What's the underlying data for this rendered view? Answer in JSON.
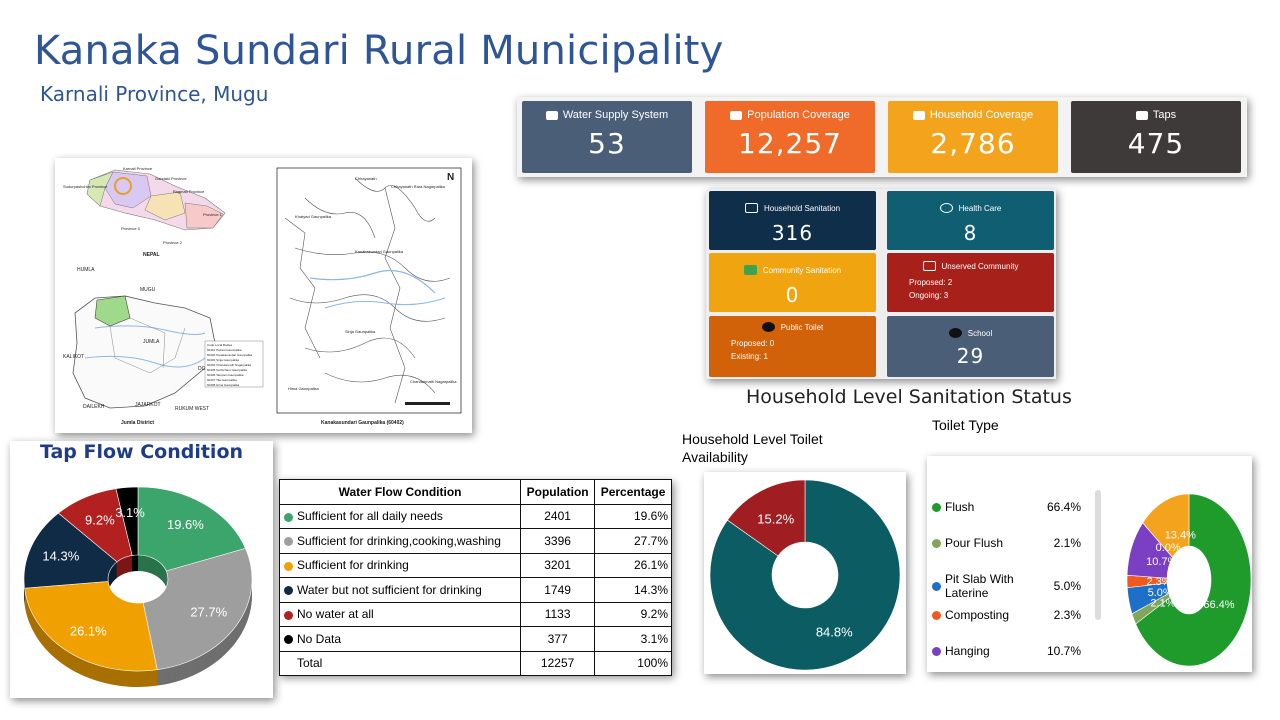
{
  "header": {
    "title": "Kanaka Sundari Rural Municipality",
    "subtitle": "Karnali Province, Mugu"
  },
  "kpis": [
    {
      "label": "Water Supply System",
      "value": "53",
      "color": "#4B5E77",
      "icon": "edit-icon"
    },
    {
      "label": "Population Coverage",
      "value": "12,257",
      "color": "#F06A2A",
      "icon": "users-icon"
    },
    {
      "label": "Household Coverage",
      "value": "2,786",
      "color": "#F4A31C",
      "icon": "home-icon"
    },
    {
      "label": "Taps",
      "value": "475",
      "color": "#3F3A3A",
      "icon": "tap-icon"
    }
  ],
  "tiles": {
    "household_sanitation": {
      "label": "Household Sanitation",
      "value": "316",
      "color": "#0E2E4A"
    },
    "health_care": {
      "label": "Health Care",
      "value": "8",
      "color": "#0F5E72"
    },
    "community_sanitation": {
      "label": "Community Sanitation",
      "value": "0",
      "color": "#F0A510"
    },
    "unserved_community": {
      "label": "Unserved Community",
      "proposed": "Proposed: 2",
      "ongoing": "Ongoing: 3",
      "color": "#A8201A"
    },
    "public_toilet": {
      "label": "Public Toilet",
      "proposed": "Proposed: 0",
      "existing": "Existing: 1",
      "color": "#D2620A"
    },
    "school": {
      "label": "School",
      "value": "29",
      "color": "#4B5E77"
    }
  },
  "map": {
    "labels": {
      "karnali": "Karnali Province",
      "gandaki": "Gandaki Province",
      "bagmati": "Bagmati Province",
      "sudur": "Sudurpashchim Province",
      "p1": "Province 1",
      "p2": "Province 2",
      "p5": "Province 5",
      "nepal": "NEPAL",
      "humla": "HUMLA",
      "mugu": "MUGU",
      "jumla": "JUMLA",
      "kalikot": "KALIKOT",
      "dolpa": "DOL",
      "dailekh": "DAILEKH",
      "jajarkot": "JAJARKOT",
      "rukum": "RUKUM WEST",
      "jumla_district": "Jumla District",
      "mugu_map_caption": "Kanakasundari Gaunpalika (60402)",
      "kanakasundari": "Kanakasundari Gaunpalika",
      "chhayanath": "Chhayanath Rara Nagarpalika",
      "khatyad": "Khatyad Gaunpalika",
      "sinja": "Sinja Gaunpalika",
      "hima": "Hima Gaunpalika",
      "chandannath": "Chandannath Nagarpalika",
      "north": "N"
    },
    "legend_rows": [
      "Code   Local Bodies",
      "60401   Patrasi Gaunpalika",
      "60402   Kanakasundari Gaunpalika",
      "60403   Sinja Gaunpalika",
      "60404   Chandannath Nagarpalika",
      "60405   Guthichaur Gaunpalika",
      "60406   Tatopani Gaunpalika",
      "60407   Tila Gaunpalika",
      "60408   Hima Gaunpalika"
    ]
  },
  "tap_flow": {
    "title": "Tap Flow Condition",
    "table": {
      "headers": [
        "Water Flow Condition",
        "Population",
        "Percentage"
      ],
      "rows": [
        {
          "label": "Sufficient for all daily needs",
          "population": "2401",
          "percentage": "19.6%",
          "color": "#3BA56B"
        },
        {
          "label": "Sufficient for drinking,cooking,washing",
          "population": "3396",
          "percentage": "27.7%",
          "color": "#9E9E9E"
        },
        {
          "label": "Sufficient for drinking",
          "population": "3201",
          "percentage": "26.1%",
          "color": "#F0A000"
        },
        {
          "label": "Water but not sufficient for drinking",
          "population": "1749",
          "percentage": "14.3%",
          "color": "#0F2B45"
        },
        {
          "label": "No water at all",
          "population": "1133",
          "percentage": "9.2%",
          "color": "#B32020"
        },
        {
          "label": "No Data",
          "population": "377",
          "percentage": "3.1%",
          "color": "#000000"
        }
      ],
      "total": {
        "label": "Total",
        "population": "12257",
        "percentage": "100%"
      }
    }
  },
  "sanitation": {
    "section_title": "Household Level Sanitation Status",
    "availability_title": "Household Level Toilet Availability",
    "toilet_type_title": "Toilet Type",
    "toilet_types": [
      {
        "name": "Flush",
        "pct": "66.4%",
        "value": 66.4,
        "color": "#1E9B2B"
      },
      {
        "name": "Pour Flush",
        "pct": "2.1%",
        "value": 2.1,
        "color": "#7FA65A"
      },
      {
        "name": "Pit Slab With Laterine",
        "pct": "5.0%",
        "value": 5.0,
        "color": "#1E6FC8"
      },
      {
        "name": "Composting",
        "pct": "2.3%",
        "value": 2.3,
        "color": "#F05A1E"
      },
      {
        "name": "Hanging",
        "pct": "10.7%",
        "value": 10.7,
        "color": "#7B3FC4"
      }
    ]
  },
  "chart_data": [
    {
      "type": "pie",
      "title": "Tap Flow Condition",
      "categories": [
        "Sufficient for all daily needs",
        "Sufficient for drinking,cooking,washing",
        "Sufficient for drinking",
        "Water but not sufficient for drinking",
        "No water at all",
        "No Data"
      ],
      "values": [
        19.6,
        27.7,
        26.1,
        14.3,
        9.2,
        3.1
      ],
      "labels": [
        "19.6%",
        "27.7%",
        "26.1%",
        "14.3%",
        "9.2%",
        "3.1%"
      ],
      "colors": [
        "#3BA56B",
        "#9E9E9E",
        "#F0A000",
        "#0F2B45",
        "#B32020",
        "#000000"
      ]
    },
    {
      "type": "pie",
      "title": "Household Level Toilet Availability",
      "categories": [
        "",
        ""
      ],
      "values": [
        84.8,
        15.2
      ],
      "labels": [
        "84.8%",
        "15.2%"
      ],
      "colors": [
        "#0B5C63",
        "#A01E22"
      ]
    },
    {
      "type": "pie",
      "title": "Toilet Type",
      "categories": [
        "Flush",
        "Pour Flush",
        "Pit Slab With Laterine",
        "Composting",
        "Hanging",
        "",
        ""
      ],
      "values": [
        66.4,
        2.1,
        5.0,
        2.3,
        10.7,
        0.0,
        13.4
      ],
      "labels": [
        "66.4%",
        "2.1%",
        "5.0%",
        "2.3%",
        "10.7%",
        "0.0%",
        "13.4%"
      ],
      "colors": [
        "#1E9B2B",
        "#7FA65A",
        "#1E6FC8",
        "#F05A1E",
        "#7B3FC4",
        "#C02A8A",
        "#F4A31C"
      ]
    }
  ]
}
